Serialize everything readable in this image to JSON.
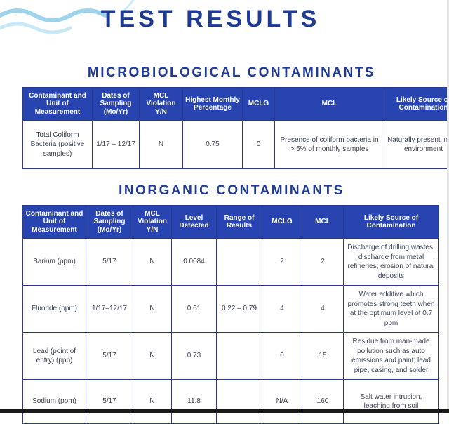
{
  "page": {
    "title": "TEST RESULTS",
    "colors": {
      "heading": "#1f3a93",
      "header_fill": "#2844b0",
      "wave": "#9fd3ec"
    }
  },
  "microbiological": {
    "title": "MICROBIOLOGICAL CONTAMINANTS",
    "headers": [
      "Contaminant and Unit of Measurement",
      "Dates of Sampling (Mo/Yr)",
      "MCL Violation Y/N",
      "Highest Monthly Percentage",
      "MCLG",
      "MCL",
      "Likely Source of Contamination"
    ],
    "rows": [
      [
        "Total Coliform Bacteria (positive samples)",
        "1/17 – 12/17",
        "N",
        "0.75",
        "0",
        "Presence of coliform bacteria in > 5% of monthly samples",
        "Naturally present in the environment"
      ]
    ]
  },
  "inorganic": {
    "title": "INORGANIC CONTAMINANTS",
    "headers": [
      "Contaminant and Unit of Measurement",
      "Dates of Sampling (Mo/Yr)",
      "MCL Violation Y/N",
      "Level Detected",
      "Range of Results",
      "MCLG",
      "MCL",
      "Likely Source of Contamination"
    ],
    "rows": [
      [
        "Barium (ppm)",
        "5/17",
        "N",
        "0.0084",
        "",
        "2",
        "2",
        "Discharge of drilling wastes; discharge from metal refineries; erosion of natural deposits"
      ],
      [
        "Fluoride (ppm)",
        "1/17–12/17",
        "N",
        "0.61",
        "0.22 – 0.79",
        "4",
        "4",
        "Water additive which promotes strong teeth when at the optimum level of 0.7 ppm"
      ],
      [
        "Lead (point of entry) (ppb)",
        "5/17",
        "N",
        "0.73",
        "",
        "0",
        "15",
        "Residue from man-made pollution such as auto emissions and paint; lead pipe, casing, and solder"
      ],
      [
        "Sodium (ppm)",
        "5/17",
        "N",
        "11.8",
        "",
        "N/A",
        "160",
        "Salt water intrusion, leaching from soil"
      ]
    ]
  }
}
